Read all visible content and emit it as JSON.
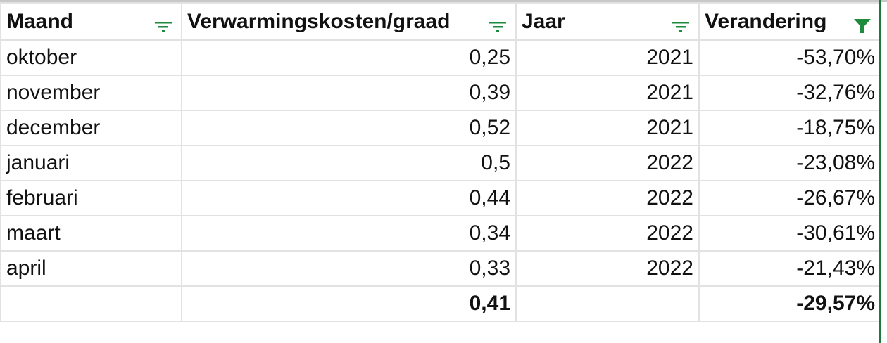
{
  "columns": [
    {
      "label": "Maand",
      "filter_icon": "filter-lines-icon",
      "filter_active": false
    },
    {
      "label": "Verwarmingskosten/graad",
      "filter_icon": "filter-lines-icon",
      "filter_active": false
    },
    {
      "label": "Jaar",
      "filter_icon": "filter-lines-icon",
      "filter_active": false
    },
    {
      "label": "Verandering",
      "filter_icon": "filter-funnel-icon",
      "filter_active": true
    }
  ],
  "rows": [
    [
      "oktober",
      "0,25",
      "2021",
      "-53,70%"
    ],
    [
      "november",
      "0,39",
      "2021",
      "-32,76%"
    ],
    [
      "december",
      "0,52",
      "2021",
      "-18,75%"
    ],
    [
      "januari",
      "0,5",
      "2022",
      "-23,08%"
    ],
    [
      "februari",
      "0,44",
      "2022",
      "-26,67%"
    ],
    [
      "maart",
      "0,34",
      "2022",
      "-30,61%"
    ],
    [
      "april",
      "0,33",
      "2022",
      "-21,43%"
    ]
  ],
  "totals": [
    "",
    "0,41",
    "",
    "-29,57%"
  ],
  "colors": {
    "filter_green": "#1e8a3c",
    "grid": "#e2e2e2"
  }
}
